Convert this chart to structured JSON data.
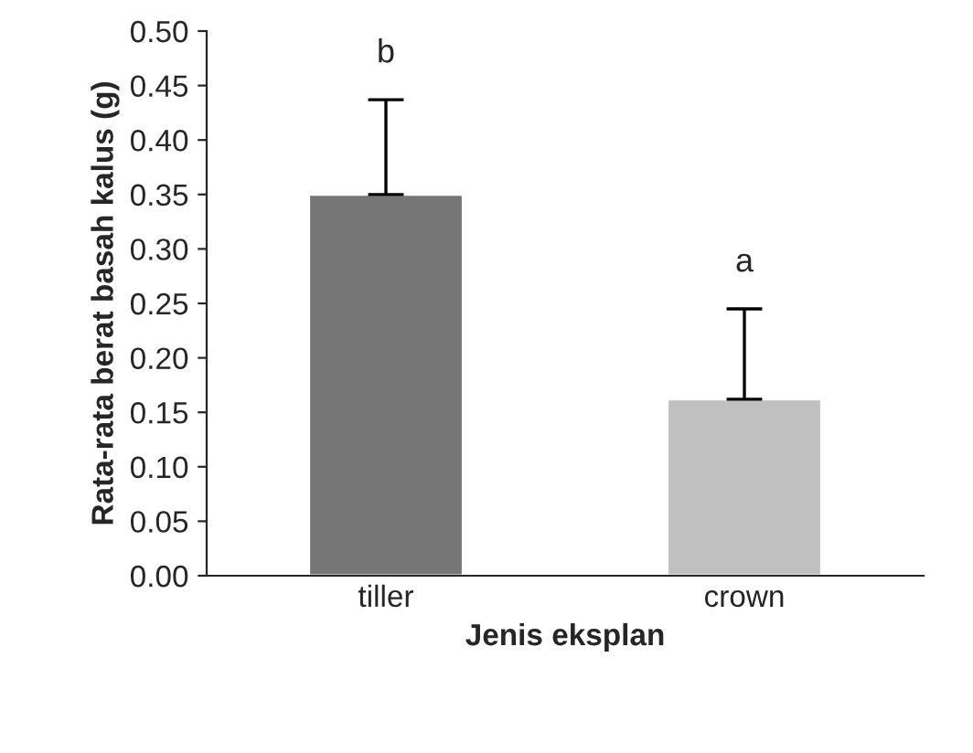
{
  "chart_data": {
    "type": "bar",
    "xlabel": "Jenis eksplan",
    "ylabel": "Rata-rata berat basah kalus (g)",
    "categories": [
      "tiller",
      "crown"
    ],
    "values": [
      0.35,
      0.162
    ],
    "colors": [
      "#767676",
      "#c0c0c0"
    ],
    "errors": [
      [
        0.35,
        0.437
      ],
      [
        0.162,
        0.245
      ]
    ],
    "ylim": [
      0,
      0.5
    ],
    "yticks": [
      {
        "value": 0,
        "label": "0.00"
      },
      {
        "value": 0.05,
        "label": "0.05"
      },
      {
        "value": 0.1,
        "label": "0.10"
      },
      {
        "value": 0.15,
        "label": "0.15"
      },
      {
        "value": 0.2,
        "label": "0.20"
      },
      {
        "value": 0.25,
        "label": "0.25"
      },
      {
        "value": 0.3,
        "label": "0.30"
      },
      {
        "value": 0.35,
        "label": "0.35"
      },
      {
        "value": 0.4,
        "label": "0.40"
      },
      {
        "value": 0.45,
        "label": "0.45"
      },
      {
        "value": 0.5,
        "label": "0.50"
      }
    ],
    "annotations": [
      "b",
      "a"
    ],
    "grid": false,
    "legend": false
  }
}
